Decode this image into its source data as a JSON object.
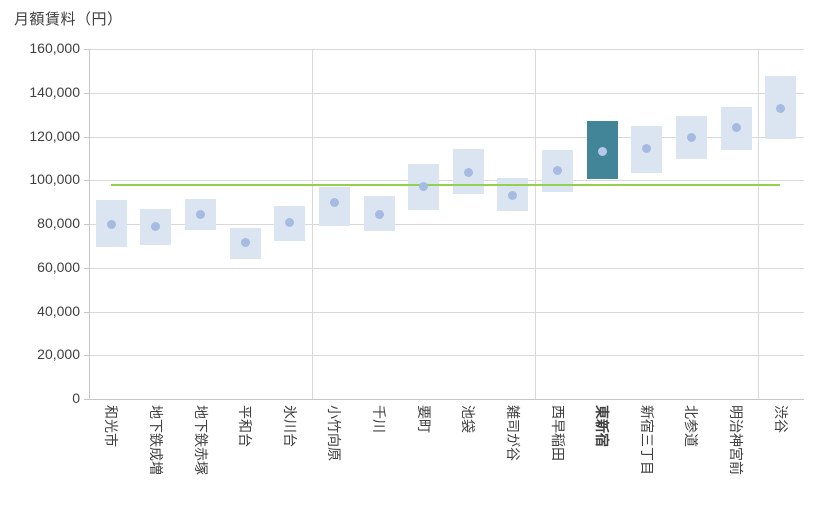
{
  "header": {
    "title": "月額賃料（円）"
  },
  "chart_data": {
    "type": "bar",
    "subtype": "floating_range_bars_with_mean_dots",
    "title": "月額賃料（円）",
    "ylabel": "月額賃料（円）",
    "xlabel": "",
    "ylim": [
      0,
      160000
    ],
    "ytick_step": 20000,
    "ytick_labels": [
      "0",
      "20,000",
      "40,000",
      "60,000",
      "80,000",
      "100,000",
      "120,000",
      "140,000",
      "160,000"
    ],
    "grid": true,
    "legend": "none",
    "categories": [
      "和光市",
      "地下鉄成増",
      "地下鉄赤塚",
      "平和台",
      "氷川台",
      "小竹向原",
      "千川",
      "要町",
      "池袋",
      "雑司が谷",
      "西早稲田",
      "東新宿",
      "新宿三丁目",
      "北参道",
      "明治神宮前",
      "渋谷"
    ],
    "series": [
      {
        "name": "range_low",
        "values": [
          69500,
          70500,
          77500,
          64000,
          72000,
          79000,
          77000,
          86500,
          94000,
          86000,
          95000,
          100500,
          103500,
          110000,
          114000,
          118500
        ]
      },
      {
        "name": "range_high",
        "values": [
          91000,
          87000,
          91500,
          78000,
          88000,
          97000,
          93000,
          107500,
          114500,
          101000,
          114000,
          127000,
          125000,
          129500,
          133500,
          147500
        ]
      },
      {
        "name": "mean_dot",
        "values": [
          80000,
          79000,
          84500,
          71500,
          80500,
          90000,
          84500,
          97000,
          103500,
          93000,
          104500,
          113000,
          114500,
          119500,
          124000,
          133000
        ]
      }
    ],
    "reference_line": {
      "value": 98000
    },
    "highlighted_category": "東新宿",
    "category_separators_at": [
      5,
      10,
      15
    ],
    "colors": {
      "bar_fill": "#dbe5f1",
      "bar_highlight": "#428598",
      "dot": "#a6bbe2",
      "dot_on_highlight": "#b7c7ea",
      "reference_line": "#92d050",
      "gridline": "#d9d9d9",
      "axis": "#c6c6c6",
      "text": "#404040"
    }
  }
}
